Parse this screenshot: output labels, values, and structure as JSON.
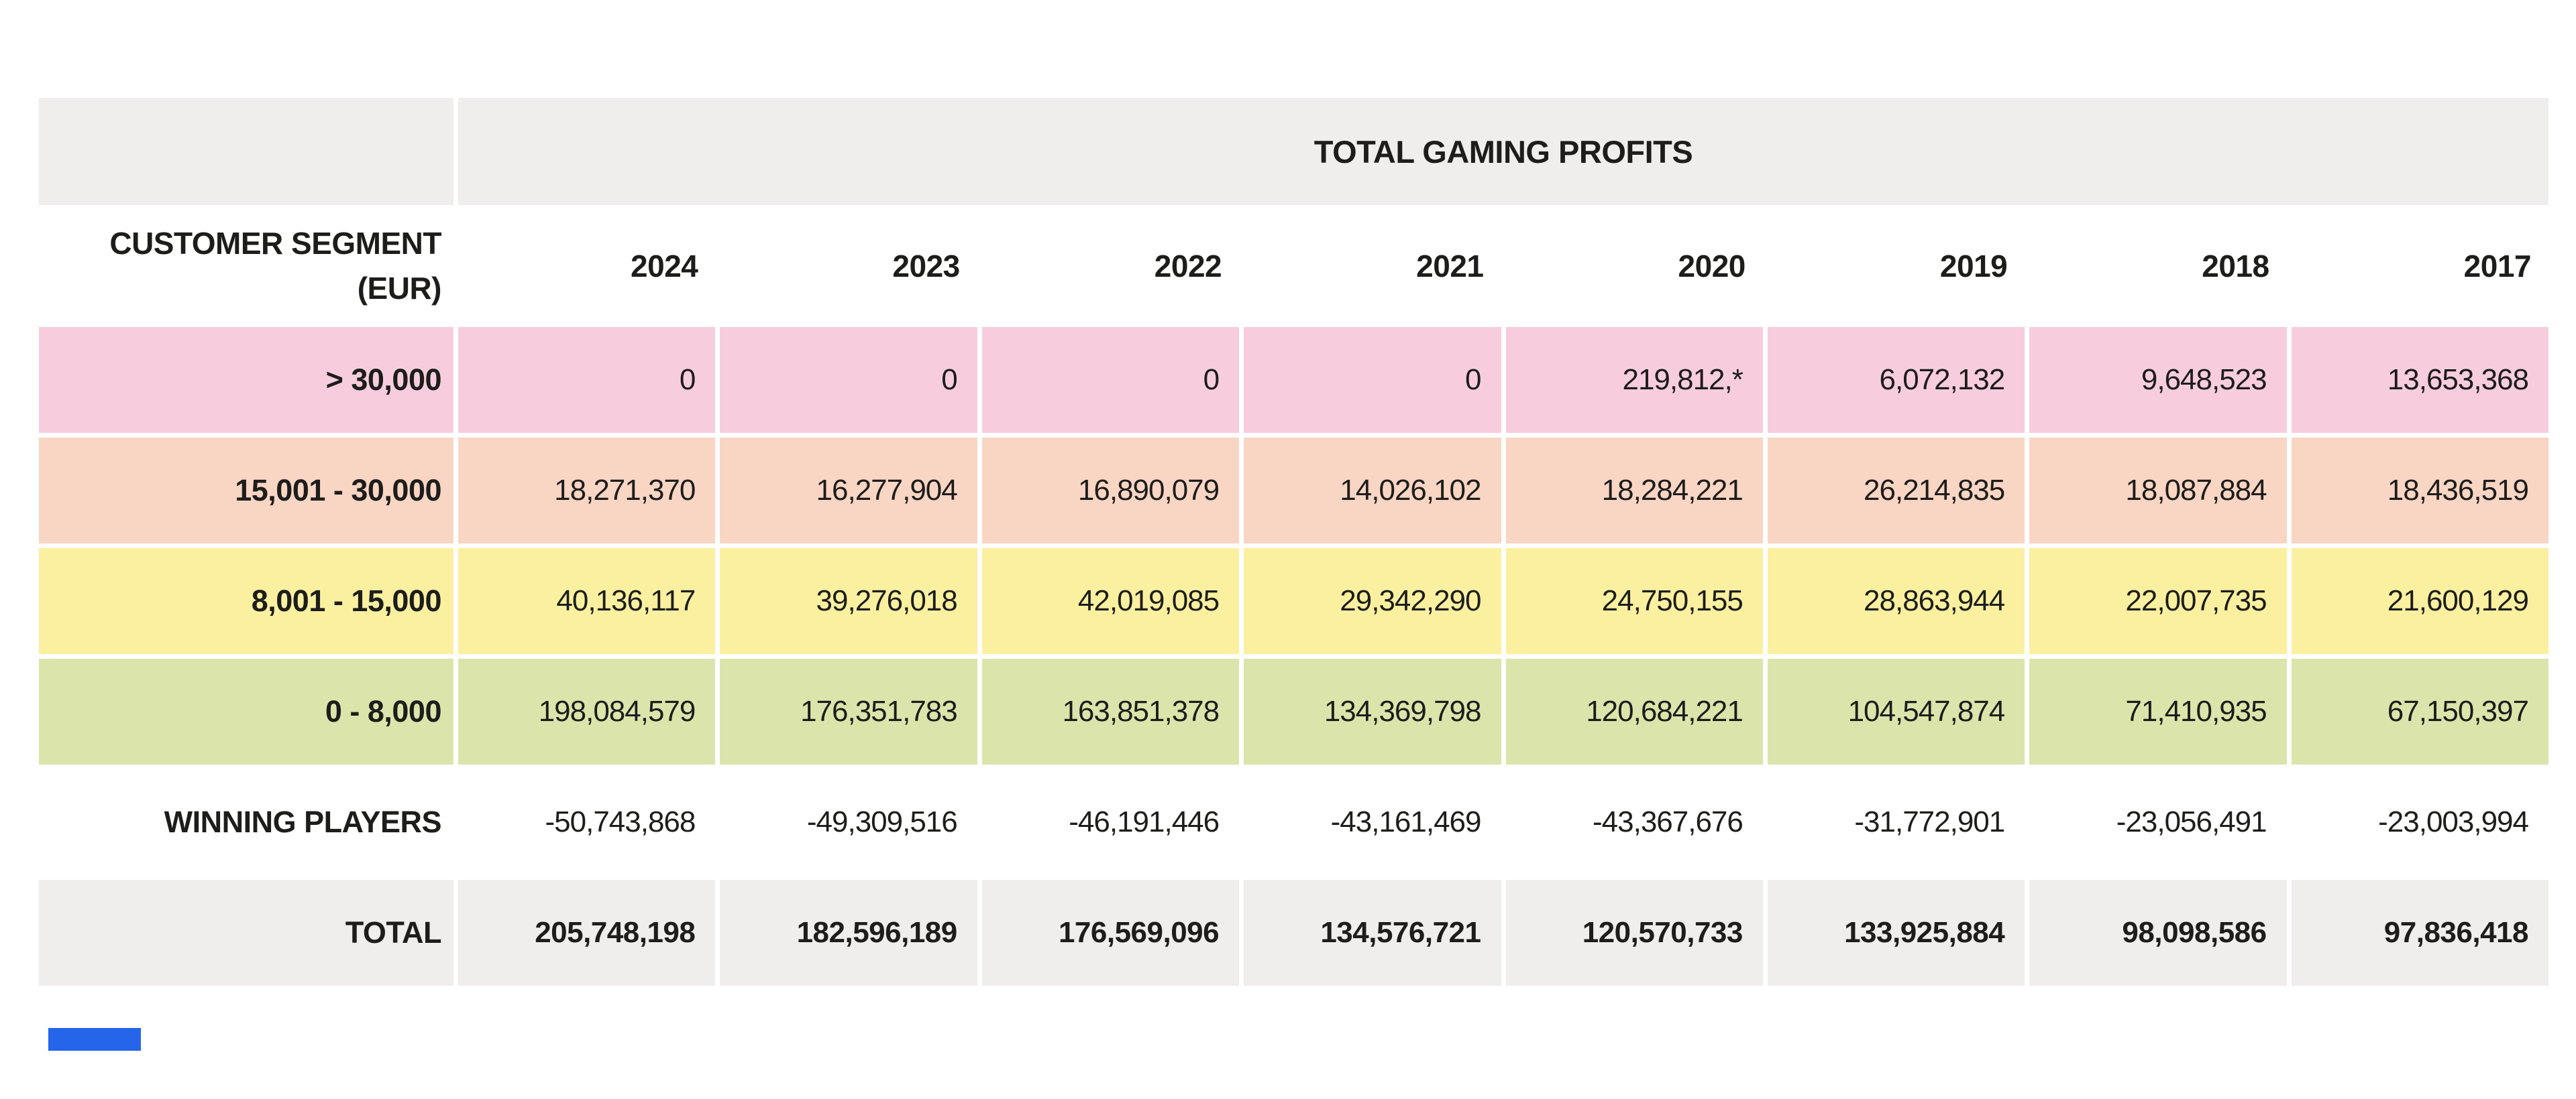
{
  "chart_data": {
    "type": "table",
    "title": "TOTAL GAMING PROFITS",
    "row_header": {
      "line1": "CUSTOMER SEGMENT",
      "line2": "(EUR)"
    },
    "columns": [
      "2024",
      "2023",
      "2022",
      "2021",
      "2020",
      "2019",
      "2018",
      "2017"
    ],
    "rows": [
      {
        "label": "> 30,000",
        "color": "pink",
        "bold_values": false,
        "values": [
          "0",
          "0",
          "0",
          "0",
          "219,812,*",
          "6,072,132",
          "9,648,523",
          "13,653,368"
        ]
      },
      {
        "label": "15,001 - 30,000",
        "color": "salmon",
        "bold_values": false,
        "values": [
          "18,271,370",
          "16,277,904",
          "16,890,079",
          "14,026,102",
          "18,284,221",
          "26,214,835",
          "18,087,884",
          "18,436,519"
        ]
      },
      {
        "label": "8,001 - 15,000",
        "color": "yellow",
        "bold_values": false,
        "values": [
          "40,136,117",
          "39,276,018",
          "42,019,085",
          "29,342,290",
          "24,750,155",
          "28,863,944",
          "22,007,735",
          "21,600,129"
        ]
      },
      {
        "label": "0 - 8,000",
        "color": "green",
        "bold_values": false,
        "values": [
          "198,084,579",
          "176,351,783",
          "163,851,378",
          "134,369,798",
          "120,684,221",
          "104,547,874",
          "71,410,935",
          "67,150,397"
        ]
      },
      {
        "label": "WINNING PLAYERS",
        "color": "white",
        "bold_values": false,
        "values": [
          "-50,743,868",
          "-49,309,516",
          "-46,191,446",
          "-43,161,469",
          "-43,367,676",
          "-31,772,901",
          "-23,056,491",
          "-23,003,994"
        ]
      },
      {
        "label": "TOTAL",
        "color": "gray",
        "bold_values": true,
        "values": [
          "205,748,198",
          "182,596,189",
          "176,569,096",
          "134,576,721",
          "120,570,733",
          "133,925,884",
          "98,098,586",
          "97,836,418"
        ]
      }
    ],
    "layout_hints": {
      "grid": "off",
      "cell_gaps": "white 7px gaps between cells",
      "alignment": "right"
    }
  },
  "colors": {
    "pink": "#f7cdde",
    "salmon": "#f9d5c4",
    "yellow": "#fbf0a0",
    "green": "#dbe5ab",
    "gray": "#f0eeec",
    "white": "#ffffff",
    "accent_blue": "#2465e9",
    "text": "#1d1d1b"
  }
}
